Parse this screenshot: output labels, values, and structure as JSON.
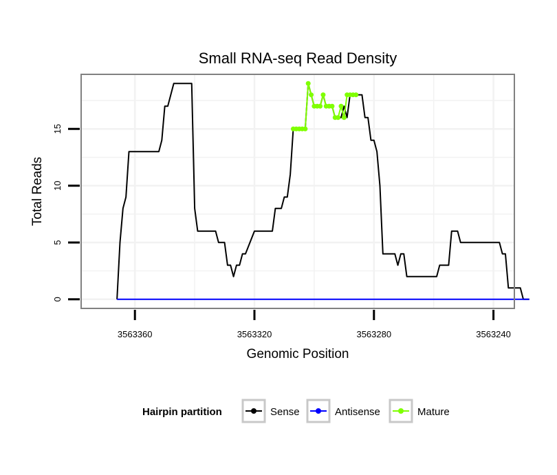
{
  "chart_data": {
    "type": "line",
    "title": "Small RNA-seq Read Density",
    "xlabel": "Genomic Position",
    "ylabel": "Total Reads",
    "xlim": [
      3563378,
      3563233
    ],
    "ylim": [
      -0.8,
      19.8
    ],
    "x_ticks": [
      3563360,
      3563320,
      3563280,
      3563240
    ],
    "y_ticks": [
      0,
      5,
      10,
      15
    ],
    "grid": true,
    "legend": {
      "title": "Hairpin partition",
      "position": "bottom",
      "entries": [
        {
          "label": "Sense",
          "color": "#000000"
        },
        {
          "label": "Antisense",
          "color": "#0000ff"
        },
        {
          "label": "Mature",
          "color": "#7fff00"
        }
      ]
    },
    "series": [
      {
        "name": "Sense",
        "color": "#000000",
        "points": [
          [
            3563366,
            0
          ],
          [
            3563365,
            5
          ],
          [
            3563364,
            8
          ],
          [
            3563363,
            9
          ],
          [
            3563362,
            13
          ],
          [
            3563352,
            13
          ],
          [
            3563351,
            14
          ],
          [
            3563350,
            17
          ],
          [
            3563349,
            17
          ],
          [
            3563347,
            19
          ],
          [
            3563341,
            19
          ],
          [
            3563340,
            8
          ],
          [
            3563339,
            6
          ],
          [
            3563333,
            6
          ],
          [
            3563332,
            5
          ],
          [
            3563330,
            5
          ],
          [
            3563329,
            3
          ],
          [
            3563328,
            3
          ],
          [
            3563327,
            2
          ],
          [
            3563326,
            3
          ],
          [
            3563325,
            3
          ],
          [
            3563324,
            4
          ],
          [
            3563323,
            4
          ],
          [
            3563320,
            6
          ],
          [
            3563314,
            6
          ],
          [
            3563313,
            8
          ],
          [
            3563311,
            8
          ],
          [
            3563310,
            9
          ],
          [
            3563309,
            9
          ],
          [
            3563308,
            11
          ],
          [
            3563307,
            15
          ],
          [
            3563303,
            15
          ],
          [
            3563302,
            19
          ],
          [
            3563301,
            18
          ],
          [
            3563300,
            17
          ],
          [
            3563298,
            17
          ],
          [
            3563297,
            18
          ],
          [
            3563296,
            17
          ],
          [
            3563294,
            17
          ],
          [
            3563293,
            16
          ],
          [
            3563291,
            16
          ],
          [
            3563290,
            17
          ],
          [
            3563289,
            16
          ],
          [
            3563288,
            18
          ],
          [
            3563284,
            18
          ],
          [
            3563283,
            16
          ],
          [
            3563282,
            16
          ],
          [
            3563281,
            14
          ],
          [
            3563280,
            14
          ],
          [
            3563279,
            13
          ],
          [
            3563278,
            10
          ],
          [
            3563277,
            4
          ],
          [
            3563273,
            4
          ],
          [
            3563272,
            3
          ],
          [
            3563271,
            4
          ],
          [
            3563270,
            4
          ],
          [
            3563269,
            2
          ],
          [
            3563259,
            2
          ],
          [
            3563258,
            3
          ],
          [
            3563255,
            3
          ],
          [
            3563254,
            6
          ],
          [
            3563252,
            6
          ],
          [
            3563251,
            5
          ],
          [
            3563238,
            5
          ],
          [
            3563237,
            4
          ],
          [
            3563236,
            4
          ],
          [
            3563235,
            1
          ],
          [
            3563231,
            1
          ],
          [
            3563230,
            0
          ],
          [
            3563228,
            0
          ]
        ]
      },
      {
        "name": "Antisense",
        "color": "#0000ff",
        "points": [
          [
            3563366,
            0
          ],
          [
            3563228,
            0
          ]
        ]
      },
      {
        "name": "Mature",
        "color": "#7fff00",
        "points": [
          [
            3563307,
            15
          ],
          [
            3563306,
            15
          ],
          [
            3563305,
            15
          ],
          [
            3563304,
            15
          ],
          [
            3563303,
            15
          ],
          [
            3563302,
            19
          ],
          [
            3563301,
            18
          ],
          [
            3563300,
            17
          ],
          [
            3563299,
            17
          ],
          [
            3563298,
            17
          ],
          [
            3563297,
            18
          ],
          [
            3563296,
            17
          ],
          [
            3563295,
            17
          ],
          [
            3563294,
            17
          ],
          [
            3563293,
            16
          ],
          [
            3563292,
            16
          ],
          [
            3563291,
            17
          ],
          [
            3563290,
            16
          ],
          [
            3563289,
            18
          ],
          [
            3563288,
            18
          ],
          [
            3563287,
            18
          ],
          [
            3563286,
            18
          ]
        ]
      }
    ]
  }
}
